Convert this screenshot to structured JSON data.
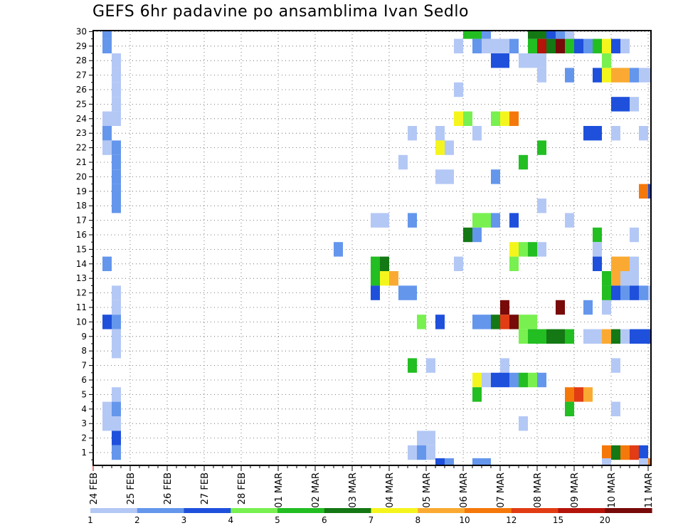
{
  "chart_data": {
    "type": "heatmap",
    "title": "GEFS 6hr padavine po ansamblima Ivan Sedlo",
    "xlabel": "",
    "ylabel": "",
    "y_range": [
      0,
      30
    ],
    "y_ticks": [
      "1",
      "2",
      "3",
      "4",
      "5",
      "6",
      "7",
      "8",
      "9",
      "10",
      "11",
      "12",
      "13",
      "14",
      "15",
      "16",
      "17",
      "18",
      "19",
      "20",
      "21",
      "22",
      "23",
      "24",
      "25",
      "26",
      "27",
      "28",
      "29",
      "30"
    ],
    "x_step_hours": 6,
    "x_range_steps": [
      0,
      61
    ],
    "x_labels": [
      "24 FEB",
      "25 FEB",
      "26 FEB",
      "27 FEB",
      "28 FEB",
      "01 MAR",
      "02 MAR",
      "03 MAR",
      "04 MAR",
      "05 MAR",
      "06 MAR",
      "07 MAR",
      "08 MAR",
      "09 MAR",
      "10 MAR",
      "11 MAR"
    ],
    "colorbar": {
      "labels": [
        "1",
        "2",
        "3",
        "4",
        "5",
        "6",
        "7",
        "8",
        "10",
        "12",
        "15",
        "20"
      ],
      "colors": [
        "#b4c8f5",
        "#6496ec",
        "#1e50dc",
        "#78f050",
        "#22be22",
        "#147814",
        "#f5f51e",
        "#faaa32",
        "#f5780a",
        "#e13c14",
        "#b4140a",
        "#780a0a"
      ]
    },
    "cells": [
      [
        2,
        30,
        1
      ],
      [
        2,
        29,
        1
      ],
      [
        2,
        24,
        0
      ],
      [
        2,
        23,
        1
      ],
      [
        2,
        22,
        0
      ],
      [
        2,
        14,
        1
      ],
      [
        2,
        10,
        2
      ],
      [
        2,
        4,
        0
      ],
      [
        2,
        3,
        0
      ],
      [
        3,
        28,
        0
      ],
      [
        3,
        27,
        0
      ],
      [
        3,
        26,
        0
      ],
      [
        3,
        25,
        0
      ],
      [
        3,
        24,
        0
      ],
      [
        3,
        22,
        1
      ],
      [
        3,
        21,
        1
      ],
      [
        3,
        20,
        1
      ],
      [
        3,
        19,
        1
      ],
      [
        3,
        18,
        1
      ],
      [
        3,
        12,
        0
      ],
      [
        3,
        11,
        0
      ],
      [
        3,
        10,
        1
      ],
      [
        3,
        9,
        0
      ],
      [
        3,
        8,
        0
      ],
      [
        3,
        5,
        0
      ],
      [
        3,
        4,
        1
      ],
      [
        3,
        3,
        0
      ],
      [
        3,
        2,
        2
      ],
      [
        3,
        1,
        1
      ],
      [
        27,
        15,
        1
      ],
      [
        31,
        17,
        0
      ],
      [
        31,
        14,
        4
      ],
      [
        31,
        13,
        4
      ],
      [
        31,
        12,
        2
      ],
      [
        32,
        17,
        0
      ],
      [
        32,
        14,
        5
      ],
      [
        32,
        13,
        6
      ],
      [
        33,
        13,
        7
      ],
      [
        34,
        21,
        0
      ],
      [
        34,
        12,
        1
      ],
      [
        35,
        23,
        0
      ],
      [
        35,
        17,
        1
      ],
      [
        35,
        12,
        1
      ],
      [
        35,
        7,
        4
      ],
      [
        35,
        1,
        0
      ],
      [
        36,
        10,
        3
      ],
      [
        36,
        2,
        0
      ],
      [
        36,
        1,
        1
      ],
      [
        37,
        7,
        0
      ],
      [
        37,
        2,
        0
      ],
      [
        37,
        1,
        0
      ],
      [
        38,
        23,
        0
      ],
      [
        38,
        22,
        6
      ],
      [
        38,
        20,
        0
      ],
      [
        38,
        10,
        2
      ],
      [
        38,
        0,
        2
      ],
      [
        39,
        20,
        0
      ],
      [
        39,
        22,
        0
      ],
      [
        39,
        0,
        1
      ],
      [
        40,
        29,
        0
      ],
      [
        40,
        26,
        0
      ],
      [
        40,
        24,
        6
      ],
      [
        40,
        14,
        0
      ],
      [
        41,
        30,
        4
      ],
      [
        41,
        24,
        3
      ],
      [
        41,
        16,
        5
      ],
      [
        42,
        30,
        4
      ],
      [
        42,
        29,
        1
      ],
      [
        42,
        23,
        0
      ],
      [
        42,
        17,
        3
      ],
      [
        42,
        16,
        1
      ],
      [
        42,
        10,
        1
      ],
      [
        42,
        6,
        6
      ],
      [
        42,
        5,
        4
      ],
      [
        42,
        0,
        1
      ],
      [
        43,
        30,
        1
      ],
      [
        43,
        29,
        0
      ],
      [
        43,
        17,
        3
      ],
      [
        43,
        10,
        1
      ],
      [
        43,
        6,
        0
      ],
      [
        43,
        0,
        1
      ],
      [
        44,
        29,
        0
      ],
      [
        44,
        28,
        2
      ],
      [
        44,
        24,
        3
      ],
      [
        44,
        20,
        1
      ],
      [
        44,
        17,
        1
      ],
      [
        44,
        10,
        5
      ],
      [
        44,
        6,
        2
      ],
      [
        45,
        29,
        0
      ],
      [
        45,
        28,
        2
      ],
      [
        45,
        24,
        6
      ],
      [
        45,
        10,
        9
      ],
      [
        45,
        11,
        11
      ],
      [
        45,
        7,
        0
      ],
      [
        45,
        6,
        2
      ],
      [
        46,
        29,
        1
      ],
      [
        46,
        24,
        8
      ],
      [
        46,
        17,
        2
      ],
      [
        46,
        15,
        6
      ],
      [
        46,
        14,
        3
      ],
      [
        46,
        10,
        11
      ],
      [
        46,
        6,
        1
      ],
      [
        47,
        28,
        0
      ],
      [
        47,
        21,
        4
      ],
      [
        47,
        15,
        3
      ],
      [
        47,
        10,
        3
      ],
      [
        47,
        9,
        3
      ],
      [
        47,
        6,
        4
      ],
      [
        47,
        3,
        0
      ],
      [
        48,
        30,
        5
      ],
      [
        48,
        29,
        4
      ],
      [
        48,
        28,
        0
      ],
      [
        48,
        15,
        4
      ],
      [
        48,
        10,
        3
      ],
      [
        48,
        9,
        4
      ],
      [
        48,
        6,
        3
      ],
      [
        49,
        30,
        5
      ],
      [
        49,
        29,
        10
      ],
      [
        49,
        28,
        0
      ],
      [
        49,
        27,
        0
      ],
      [
        49,
        22,
        4
      ],
      [
        49,
        18,
        0
      ],
      [
        49,
        15,
        0
      ],
      [
        49,
        9,
        4
      ],
      [
        49,
        6,
        1
      ],
      [
        50,
        30,
        2
      ],
      [
        50,
        29,
        5
      ],
      [
        50,
        9,
        5
      ],
      [
        51,
        30,
        1
      ],
      [
        51,
        29,
        11
      ],
      [
        51,
        11,
        11
      ],
      [
        51,
        9,
        5
      ],
      [
        52,
        30,
        0
      ],
      [
        52,
        29,
        4
      ],
      [
        52,
        27,
        1
      ],
      [
        52,
        17,
        0
      ],
      [
        52,
        9,
        4
      ],
      [
        52,
        5,
        8
      ],
      [
        52,
        4,
        4
      ],
      [
        53,
        29,
        2
      ],
      [
        53,
        5,
        9
      ],
      [
        54,
        29,
        1
      ],
      [
        54,
        23,
        2
      ],
      [
        54,
        11,
        1
      ],
      [
        54,
        9,
        0
      ],
      [
        54,
        5,
        7
      ],
      [
        55,
        29,
        4
      ],
      [
        55,
        27,
        2
      ],
      [
        55,
        23,
        2
      ],
      [
        55,
        16,
        4
      ],
      [
        55,
        15,
        0
      ],
      [
        55,
        14,
        2
      ],
      [
        55,
        9,
        0
      ],
      [
        56,
        29,
        6
      ],
      [
        56,
        28,
        3
      ],
      [
        56,
        27,
        6
      ],
      [
        56,
        11,
        0
      ],
      [
        56,
        13,
        4
      ],
      [
        56,
        12,
        4
      ],
      [
        56,
        9,
        7
      ],
      [
        56,
        1,
        8
      ],
      [
        56,
        0,
        0
      ],
      [
        57,
        29,
        2
      ],
      [
        57,
        27,
        7
      ],
      [
        57,
        25,
        2
      ],
      [
        57,
        23,
        0
      ],
      [
        57,
        14,
        7
      ],
      [
        57,
        13,
        7
      ],
      [
        57,
        12,
        2
      ],
      [
        57,
        9,
        5
      ],
      [
        57,
        7,
        0
      ],
      [
        57,
        4,
        0
      ],
      [
        57,
        1,
        5
      ],
      [
        58,
        29,
        0
      ],
      [
        58,
        27,
        7
      ],
      [
        58,
        25,
        2
      ],
      [
        58,
        14,
        7
      ],
      [
        58,
        13,
        0
      ],
      [
        58,
        12,
        1
      ],
      [
        58,
        9,
        0
      ],
      [
        58,
        1,
        8
      ],
      [
        59,
        27,
        1
      ],
      [
        59,
        25,
        0
      ],
      [
        59,
        14,
        0
      ],
      [
        59,
        16,
        0
      ],
      [
        59,
        13,
        0
      ],
      [
        59,
        12,
        2
      ],
      [
        59,
        9,
        2
      ],
      [
        59,
        1,
        9
      ],
      [
        60,
        27,
        0
      ],
      [
        60,
        23,
        0
      ],
      [
        60,
        19,
        8
      ],
      [
        60,
        12,
        1
      ],
      [
        60,
        9,
        2
      ],
      [
        60,
        1,
        2
      ],
      [
        60,
        0,
        0
      ],
      [
        61,
        27,
        0
      ],
      [
        61,
        19,
        2
      ],
      [
        61,
        12,
        0
      ],
      [
        61,
        9,
        2
      ],
      [
        61,
        0,
        8
      ]
    ]
  }
}
